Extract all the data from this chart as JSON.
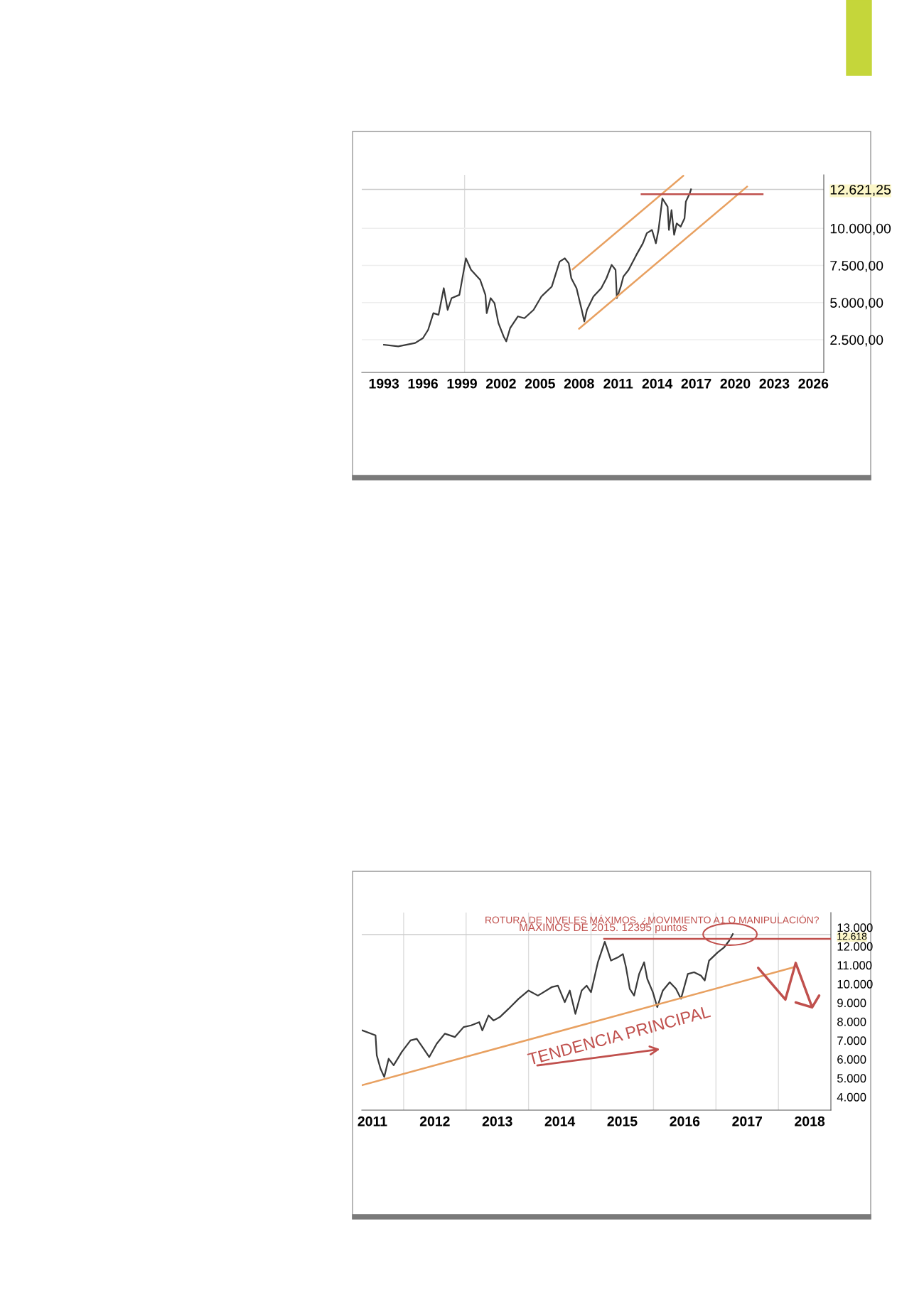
{
  "chart_data": [
    {
      "type": "line",
      "xlim": [
        1991.3,
        2026.8
      ],
      "ylim": [
        300,
        13600
      ],
      "xticks": [
        1993,
        1996,
        1999,
        2002,
        2005,
        2008,
        2011,
        2014,
        2017,
        2020,
        2023,
        2026
      ],
      "yticks": [
        {
          "value": 2500,
          "label": "2.500,00"
        },
        {
          "value": 5000,
          "label": "5.000,00"
        },
        {
          "value": 7500,
          "label": "7.500,00"
        },
        {
          "value": 10000,
          "label": "10.000,00"
        }
      ],
      "grid": "y",
      "series": [
        {
          "color": "#3a3a3a",
          "x": [
            1993.0,
            1994.1,
            1995.4,
            1996.0,
            1996.4,
            1996.8,
            1997.2,
            1997.6,
            1997.9,
            1998.2,
            1998.8,
            1999.1,
            1999.3,
            1999.7,
            2000.4,
            2000.8,
            2000.9,
            2001.2,
            2001.5,
            2001.8,
            2002.2,
            2002.4,
            2002.7,
            2003.3,
            2003.8,
            2004.5,
            2005.1,
            2005.9,
            2006.5,
            2006.9,
            2007.2,
            2007.4,
            2007.8,
            2008.2,
            2008.4,
            2008.6,
            2009.1,
            2009.7,
            2010.1,
            2010.5,
            2010.8,
            2010.9,
            2011.2,
            2011.4,
            2011.8,
            2012.4,
            2012.9,
            2013.2,
            2013.6,
            2013.9,
            2014.1,
            2014.4,
            2014.8,
            2014.9,
            2015.1,
            2015.3,
            2015.5,
            2015.8,
            2016.1,
            2016.2,
            2016.5,
            2016.6
          ],
          "values": [
            2160,
            2050,
            2280,
            2610,
            3170,
            4290,
            4180,
            5970,
            4510,
            5300,
            5520,
            6980,
            7980,
            7200,
            6530,
            5520,
            4290,
            5300,
            4960,
            3620,
            2720,
            2390,
            3280,
            4070,
            3950,
            4510,
            5410,
            6080,
            7760,
            7980,
            7650,
            6640,
            5970,
            4510,
            3730,
            4510,
            5410,
            5970,
            6640,
            7540,
            7200,
            5300,
            6080,
            6750,
            7200,
            8210,
            8990,
            9670,
            9890,
            8990,
            9890,
            12010,
            11450,
            9890,
            11230,
            9560,
            10330,
            10110,
            10670,
            11790,
            12350,
            12620
          ]
        },
        {
          "color": "#e8a060",
          "x": [
            2007.5,
            2016.0
          ],
          "values": [
            7240,
            13530
          ]
        },
        {
          "color": "#e8a060",
          "x": [
            2008.0,
            2020.9
          ],
          "values": [
            3240,
            12800
          ]
        },
        {
          "color": "#c0504d",
          "x": [
            2012.8,
            2022.1
          ],
          "values": [
            12300,
            12300
          ]
        }
      ],
      "ref_lines": [
        {
          "axis": "y",
          "value": 12621.25,
          "label": "12.621,25",
          "color": "#cccccc"
        },
        {
          "axis": "x",
          "value": 1999.2,
          "color": "#dddddd"
        }
      ]
    },
    {
      "type": "line",
      "xlim": [
        2010.83,
        2018.34
      ],
      "ylim": [
        3300,
        13790
      ],
      "xticks": [
        2011,
        2012,
        2013,
        2014,
        2015,
        2016,
        2017,
        2018
      ],
      "yticks": [
        {
          "value": 4000,
          "label": "4.000"
        },
        {
          "value": 5000,
          "label": "5.000"
        },
        {
          "value": 6000,
          "label": "6.000"
        },
        {
          "value": 7000,
          "label": "7.000"
        },
        {
          "value": 8000,
          "label": "8.000"
        },
        {
          "value": 9000,
          "label": "9.000"
        },
        {
          "value": 10000,
          "label": "10.000"
        },
        {
          "value": 11000,
          "label": "11.000"
        },
        {
          "value": 12000,
          "label": "12.000"
        },
        {
          "value": 13000,
          "label": "13.000"
        }
      ],
      "series": [
        {
          "color": "#3a3a3a",
          "x": [
            2010.84,
            2011.05,
            2011.07,
            2011.13,
            2011.19,
            2011.26,
            2011.34,
            2011.47,
            2011.61,
            2011.71,
            2011.82,
            2011.91,
            2012.03,
            2012.16,
            2012.32,
            2012.46,
            2012.58,
            2012.71,
            2012.76,
            2012.86,
            2012.94,
            2013.04,
            2013.18,
            2013.34,
            2013.5,
            2013.65,
            2013.87,
            2013.97,
            2014.08,
            2014.16,
            2014.25,
            2014.35,
            2014.43,
            2014.5,
            2014.61,
            2014.72,
            2014.76,
            2014.82,
            2014.93,
            2015.01,
            2015.06,
            2015.12,
            2015.19,
            2015.27,
            2015.35,
            2015.4,
            2015.49,
            2015.56,
            2015.65,
            2015.76,
            2015.86,
            2015.94,
            2016.05,
            2016.15,
            2016.26,
            2016.32,
            2016.39,
            2016.53,
            2016.63,
            2016.71,
            2016.77
          ],
          "values": [
            7530,
            7270,
            6210,
            5500,
            5060,
            6030,
            5680,
            6390,
            7000,
            7090,
            6560,
            6120,
            6830,
            7360,
            7180,
            7710,
            7800,
            7970,
            7530,
            8330,
            8060,
            8240,
            8680,
            9210,
            9650,
            9380,
            9830,
            9910,
            9030,
            9650,
            8410,
            9650,
            9910,
            9560,
            11150,
            12240,
            11850,
            11240,
            11410,
            11590,
            10880,
            9740,
            9380,
            10530,
            11150,
            10270,
            9560,
            8770,
            9650,
            10090,
            9740,
            9210,
            10530,
            10620,
            10440,
            10180,
            11240,
            11680,
            11940,
            12290,
            12650
          ]
        },
        {
          "color": "#e8a060",
          "x": [
            2010.83,
            2017.74
          ],
          "values": [
            4620,
            10880
          ]
        },
        {
          "color": "#c0504d",
          "x": [
            2014.71,
            2018.34
          ],
          "values": [
            12395,
            12395
          ]
        }
      ],
      "ref_lines": [
        {
          "axis": "y",
          "value": 12618,
          "label": "12.618",
          "color": "#cccccc"
        },
        {
          "axis": "x",
          "value": 2011.5,
          "color": "#dddddd"
        },
        {
          "axis": "x",
          "value": 2012.5,
          "color": "#dddddd"
        },
        {
          "axis": "x",
          "value": 2013.5,
          "color": "#dddddd"
        },
        {
          "axis": "x",
          "value": 2014.5,
          "color": "#dddddd"
        },
        {
          "axis": "x",
          "value": 2015.5,
          "color": "#dddddd"
        },
        {
          "axis": "x",
          "value": 2016.5,
          "color": "#dddddd"
        },
        {
          "axis": "x",
          "value": 2017.5,
          "color": "#dddddd"
        }
      ],
      "annotations": [
        "ROTURA DE NIVELES MÁXIMOS. ¿MOVIMIENTO A1 O MANIPULACIÓN?",
        "MÁXIMOS DE 2015. 12395 puntos",
        "TENDENCIA PRINCIPAL"
      ]
    }
  ]
}
